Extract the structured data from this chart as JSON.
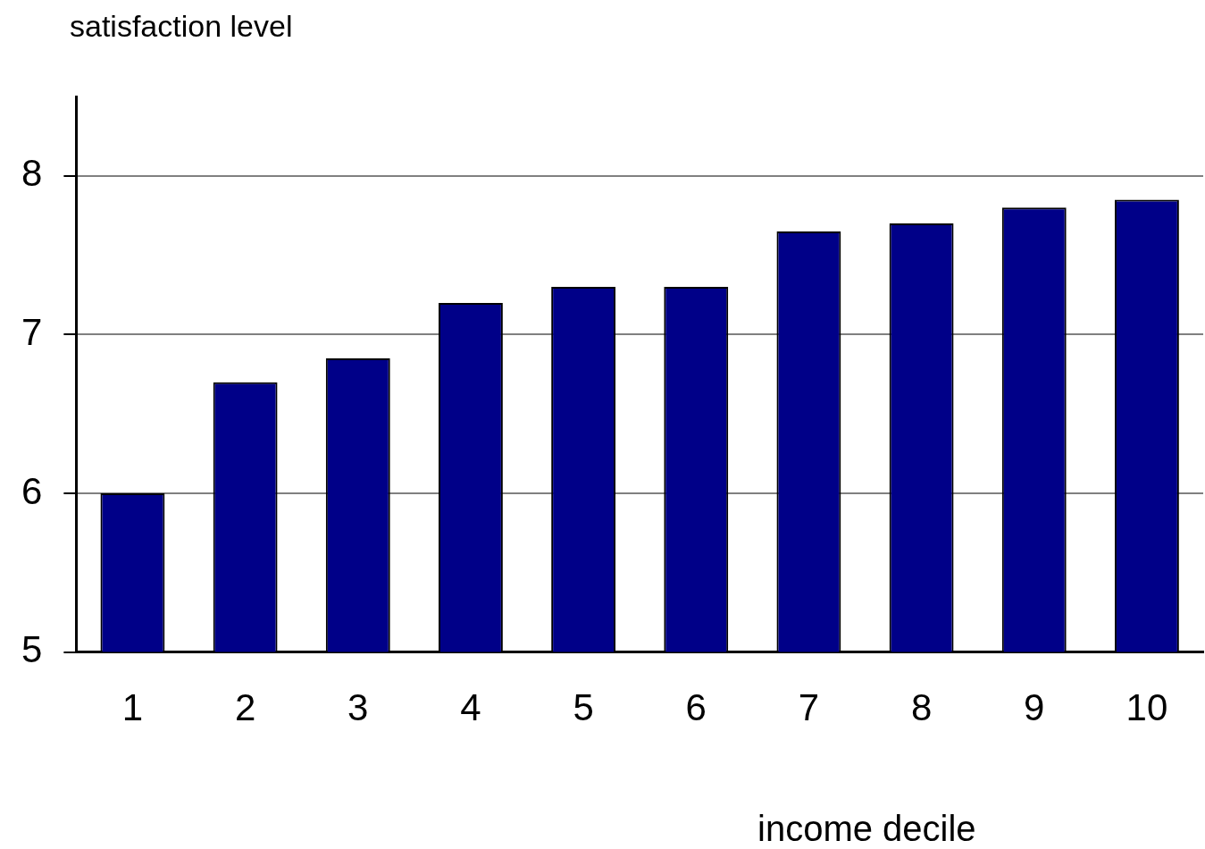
{
  "chart_data": {
    "type": "bar",
    "xlabel": "income decile",
    "ylabel": "satisfaction level",
    "categories": [
      "1",
      "2",
      "3",
      "4",
      "5",
      "6",
      "7",
      "8",
      "9",
      "10"
    ],
    "values": [
      6.0,
      6.7,
      6.85,
      7.2,
      7.3,
      7.3,
      7.65,
      7.7,
      7.8,
      7.85
    ],
    "color": "#000088",
    "ylim": [
      5,
      8.5
    ],
    "yticks": [
      5,
      6,
      7,
      8
    ],
    "grid": "y",
    "legend": false
  }
}
